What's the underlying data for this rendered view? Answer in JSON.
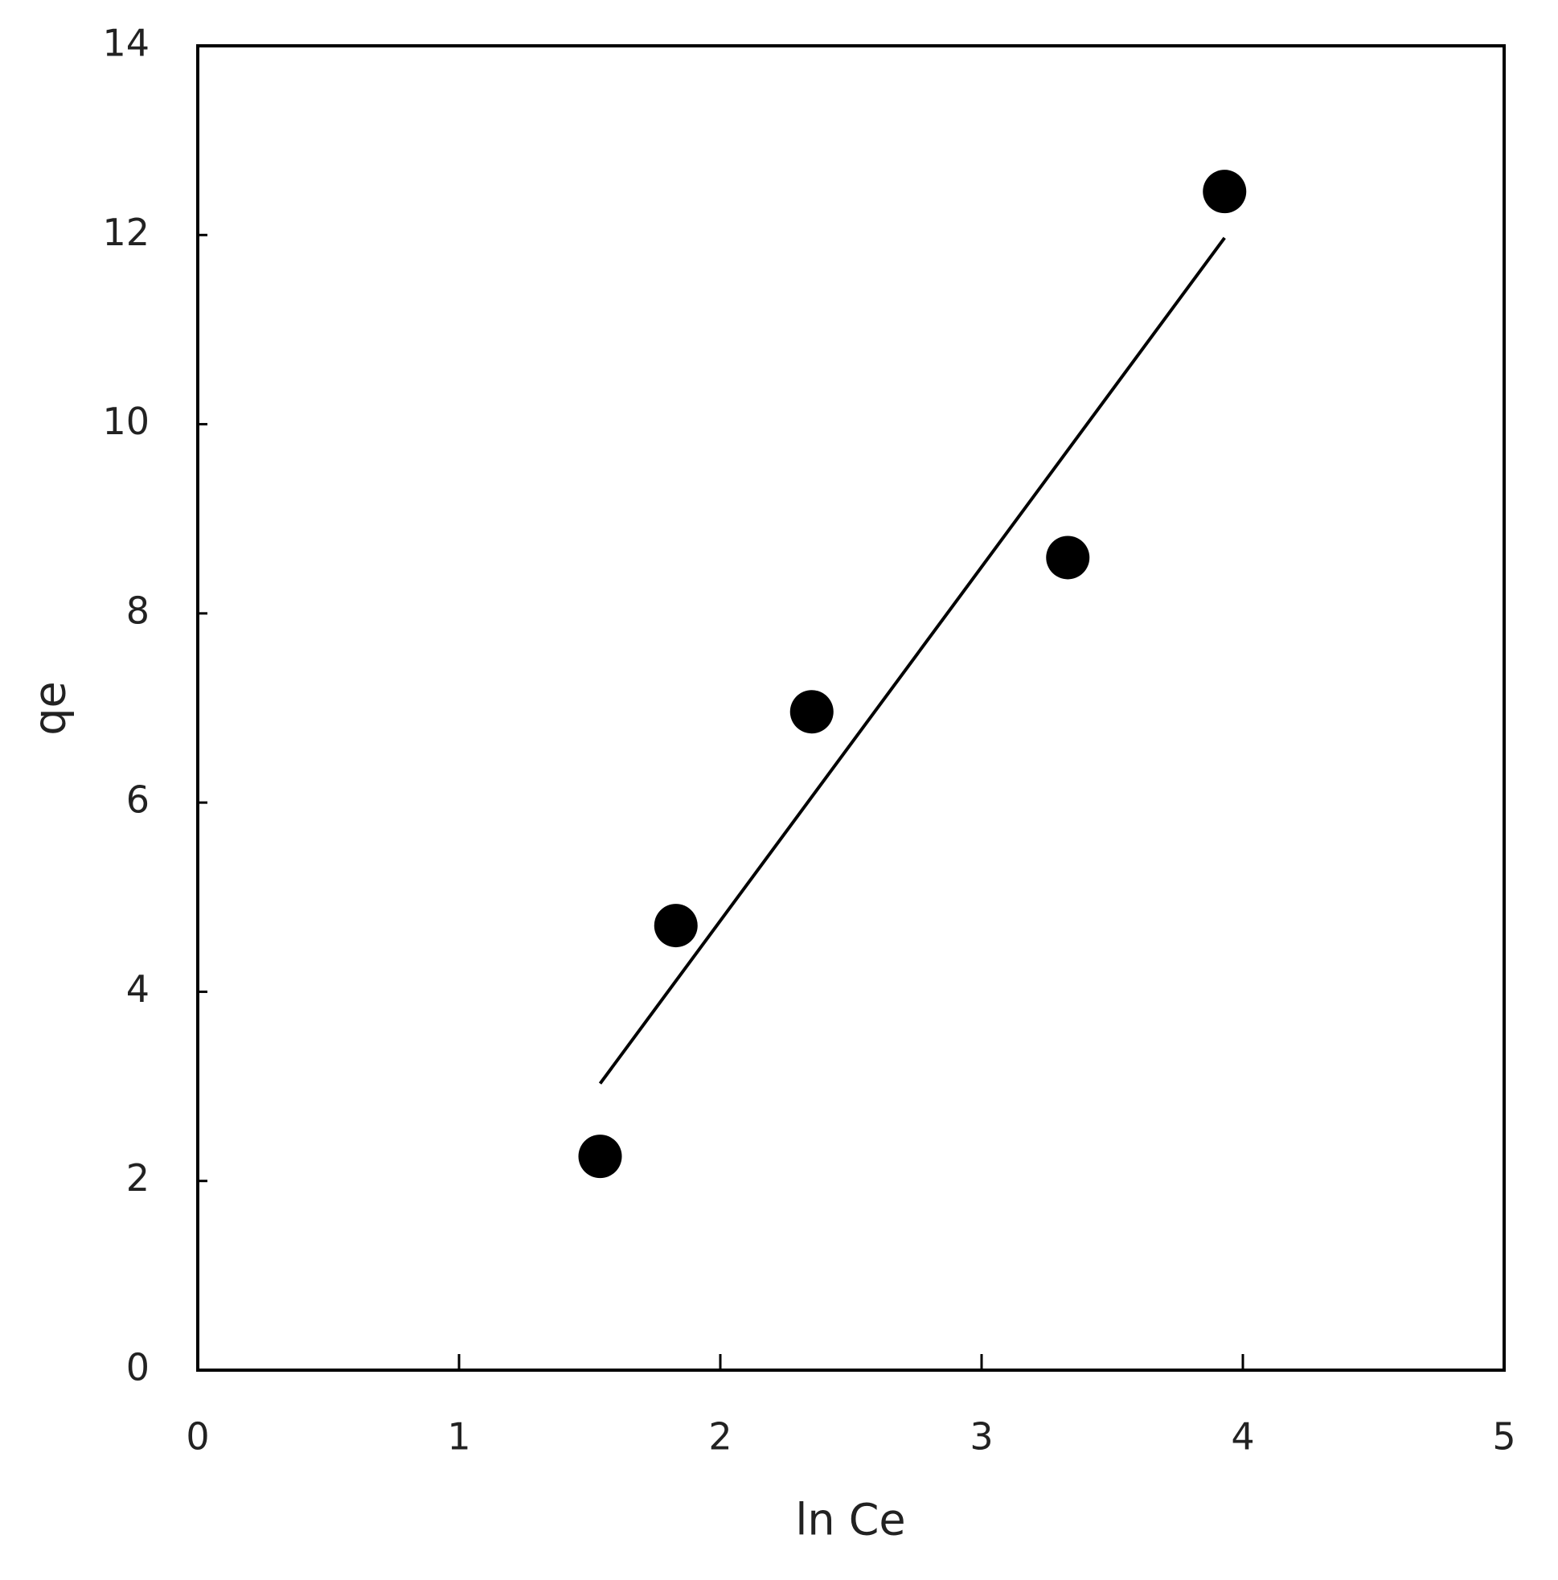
{
  "chart_data": {
    "type": "scatter",
    "x_label": "ln Ce",
    "y_label": "qe",
    "xlim": [
      0,
      5
    ],
    "xticks": [
      0,
      1,
      2,
      3,
      4,
      5
    ],
    "ylim": [
      0,
      14
    ],
    "yticks": [
      0,
      2,
      4,
      6,
      8,
      10,
      12,
      14
    ],
    "series": [
      {
        "color": "#000000",
        "marker": "circle",
        "x": [
          1.54,
          1.83,
          2.35,
          3.33,
          3.93
        ],
        "values": [
          2.26,
          4.7,
          6.96,
          8.59,
          12.46
        ]
      },
      {
        "color": "#000000",
        "line": true,
        "x": [
          1.54,
          3.93
        ],
        "values": [
          3.03,
          11.97
        ]
      }
    ]
  }
}
